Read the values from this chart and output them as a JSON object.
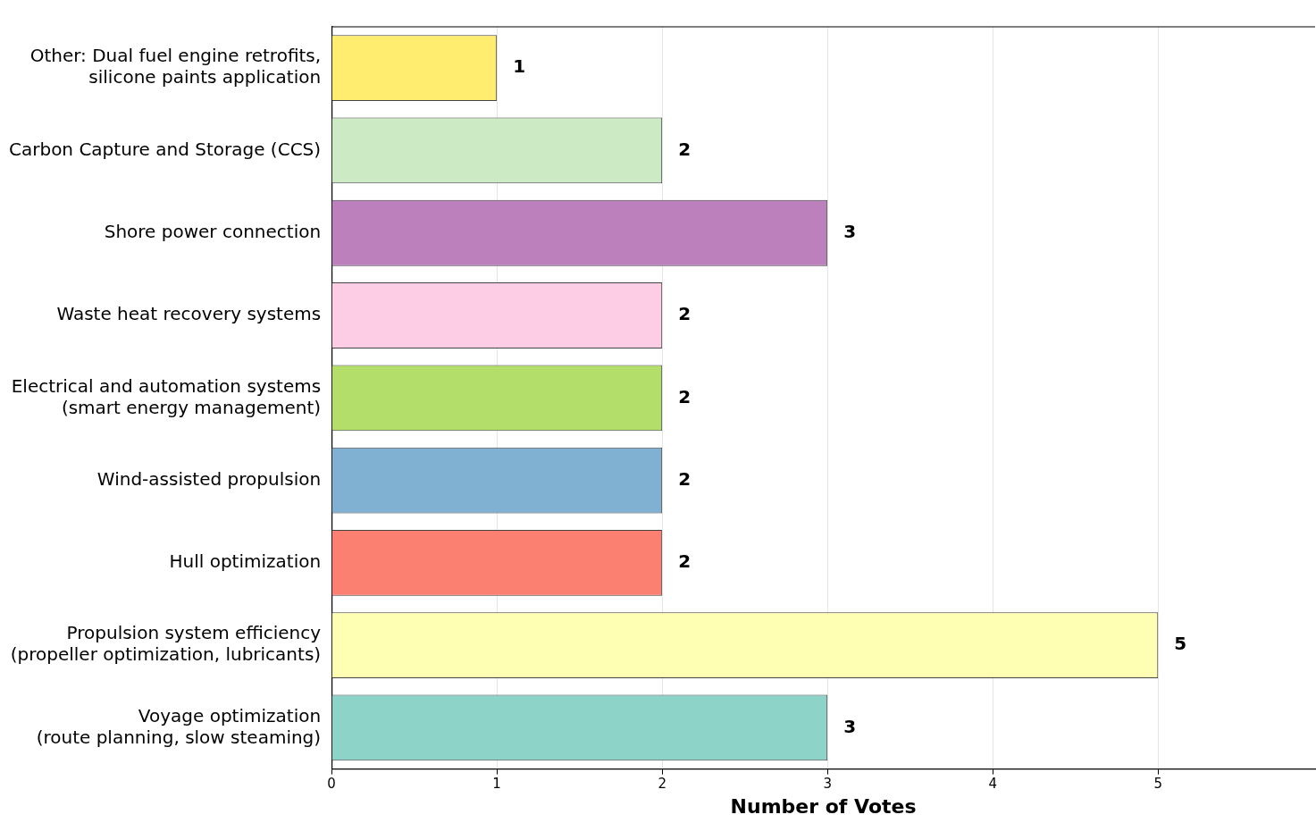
{
  "chart_data": {
    "type": "bar",
    "orientation": "horizontal",
    "xlabel": "Number of Votes",
    "categories": [
      "Other: Dual fuel engine retrofits,\nsilicone paints application",
      "Carbon Capture and Storage (CCS)",
      "Shore power connection",
      "Waste heat recovery systems",
      "Electrical and automation systems\n(smart energy management)",
      "Wind-assisted propulsion",
      "Hull optimization",
      "Propulsion system efficiency\n(propeller optimization, lubricants)",
      "Voyage optimization\n(route planning, slow steaming)"
    ],
    "values": [
      1,
      2,
      3,
      2,
      2,
      2,
      2,
      5,
      3
    ],
    "colors": [
      "#ffed6f",
      "#ccebc5",
      "#bc80bd",
      "#fccde5",
      "#b3de69",
      "#80b1d3",
      "#fb8072",
      "#ffffb3",
      "#8dd3c7"
    ],
    "xlim": [
      0,
      5.95
    ],
    "xticks": [
      0,
      1,
      2,
      3,
      4,
      5
    ],
    "grid": "x",
    "data_labels": true
  }
}
